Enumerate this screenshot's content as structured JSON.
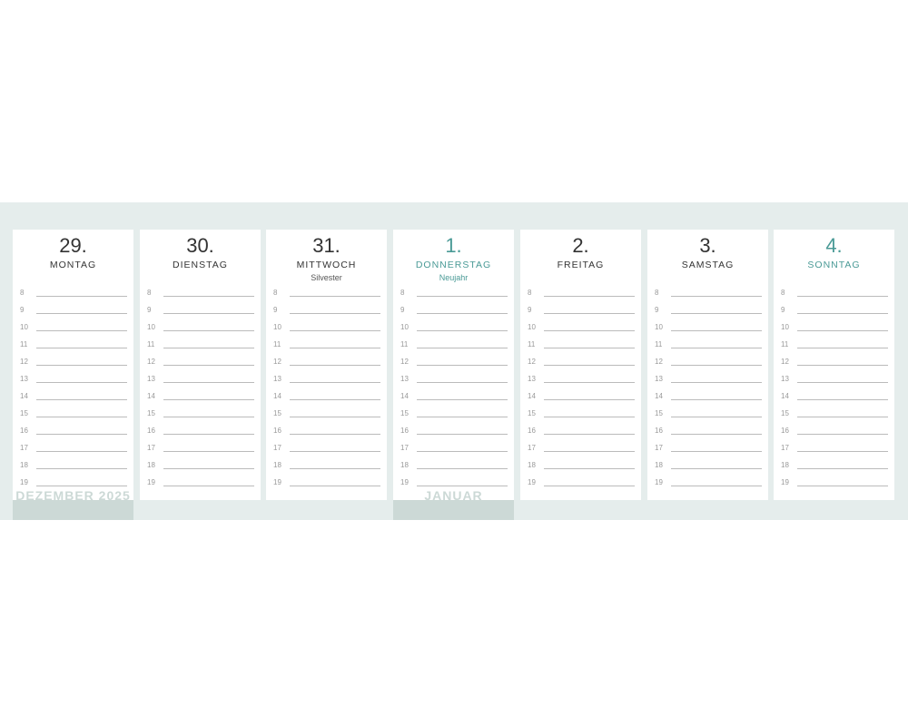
{
  "accent_color": "#4a9a96",
  "hours": [
    "8",
    "9",
    "10",
    "11",
    "12",
    "13",
    "14",
    "15",
    "16",
    "17",
    "18",
    "19"
  ],
  "days": [
    {
      "num": "29.",
      "name": "MONTAG",
      "holiday": "",
      "accent": false
    },
    {
      "num": "30.",
      "name": "DIENSTAG",
      "holiday": "",
      "accent": false
    },
    {
      "num": "31.",
      "name": "MITTWOCH",
      "holiday": "Silvester",
      "accent": false
    },
    {
      "num": "1.",
      "name": "DONNERSTAG",
      "holiday": "Neujahr",
      "accent": true
    },
    {
      "num": "2.",
      "name": "FREITAG",
      "holiday": "",
      "accent": false
    },
    {
      "num": "3.",
      "name": "SAMSTAG",
      "holiday": "",
      "accent": false
    },
    {
      "num": "4.",
      "name": "SONNTAG",
      "holiday": "",
      "accent": true
    }
  ],
  "months": [
    {
      "label": "DEZEMBER 2025",
      "day_index": 0
    },
    {
      "label": "JANUAR",
      "day_index": 3
    }
  ]
}
